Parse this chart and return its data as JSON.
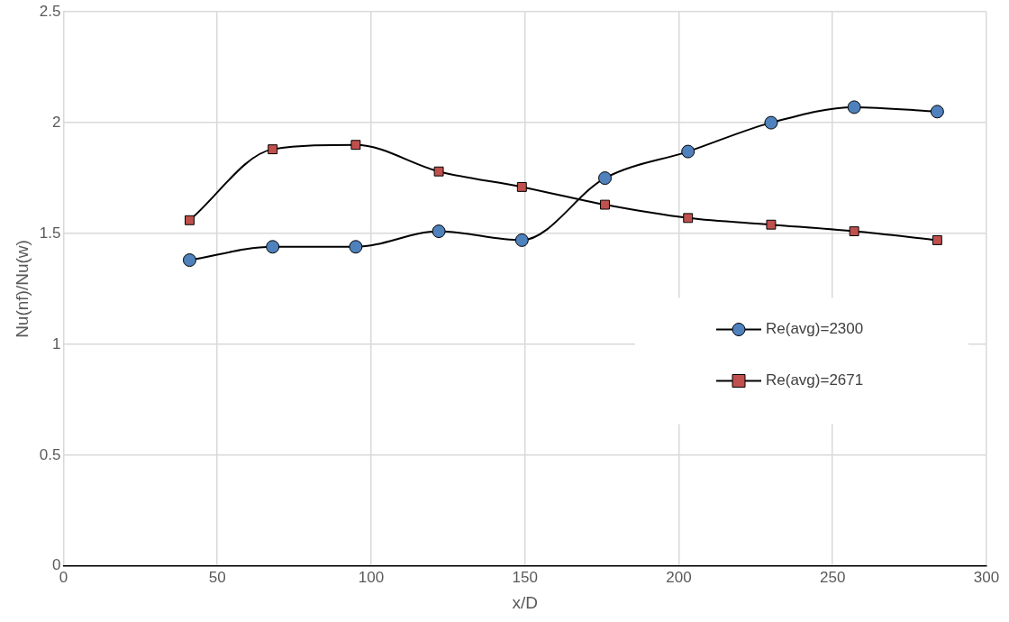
{
  "chart_data": {
    "type": "line",
    "xlabel": "x/D",
    "ylabel": "Nu(nf)/Nu(w)",
    "x": [
      41,
      68,
      95,
      122,
      149,
      176,
      203,
      230,
      257,
      284
    ],
    "series": [
      {
        "name": "Re(avg)=2300",
        "color": "#4f81bd",
        "marker": "circle",
        "values": [
          1.38,
          1.44,
          1.44,
          1.51,
          1.47,
          1.75,
          1.87,
          2.0,
          2.07,
          2.05
        ]
      },
      {
        "name": "Re(avg)=2671",
        "color": "#c0504d",
        "marker": "square",
        "values": [
          1.56,
          1.88,
          1.9,
          1.78,
          1.71,
          1.63,
          1.57,
          1.54,
          1.51,
          1.47
        ]
      }
    ],
    "xlim": [
      0,
      300
    ],
    "xticks": [
      0,
      50,
      100,
      150,
      200,
      250,
      300
    ],
    "ylim": [
      0,
      2.5
    ],
    "yticks": [
      0,
      0.5,
      1,
      1.5,
      2,
      2.5
    ],
    "grid": true,
    "legend": "right"
  }
}
